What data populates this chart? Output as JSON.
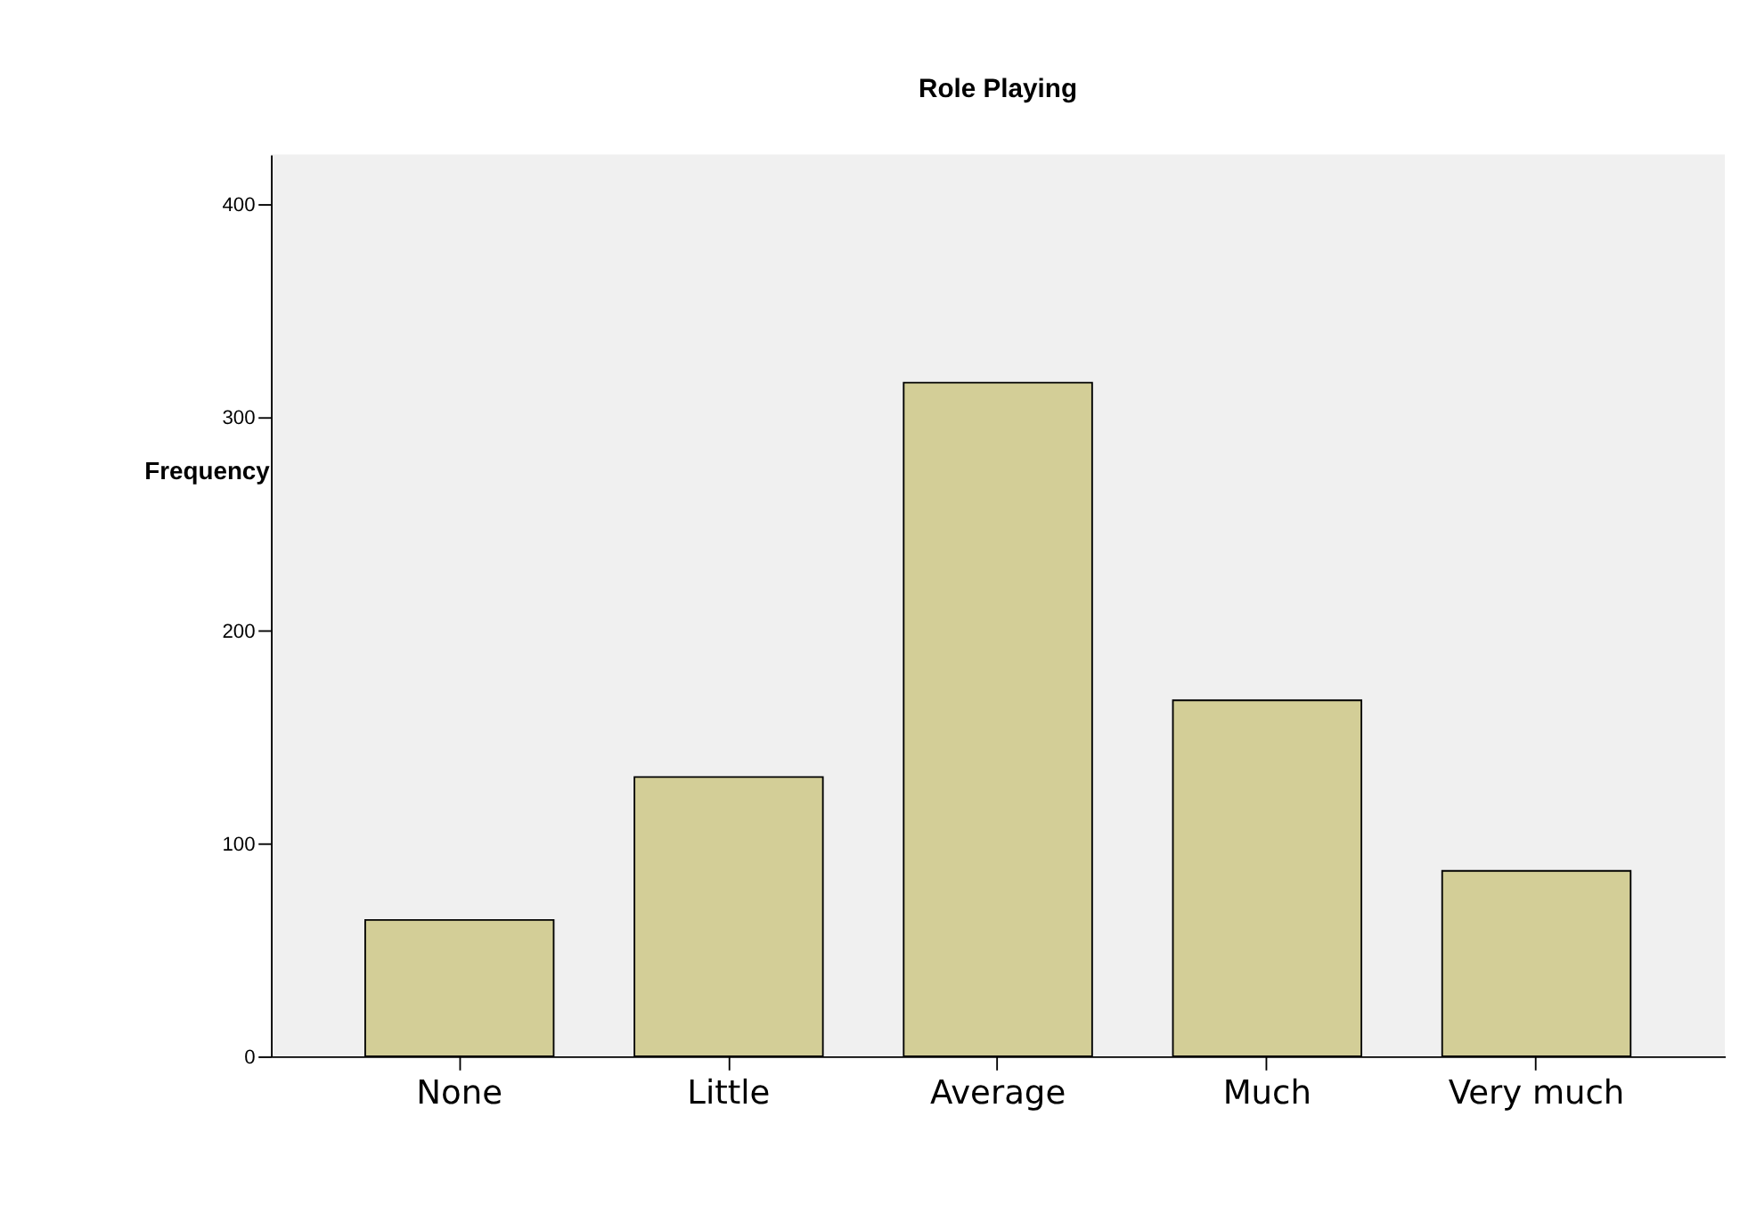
{
  "chart_data": {
    "type": "bar",
    "title": "Role Playing",
    "ylabel": "Frequency",
    "categories": [
      "None",
      "Little",
      "Average",
      "Much",
      "Very much"
    ],
    "values": [
      64,
      131,
      316,
      167,
      87
    ],
    "color": "#d3ce97",
    "ylim": [
      0,
      423
    ],
    "yticks": [
      0,
      100,
      200,
      300,
      400
    ],
    "grid": false
  }
}
